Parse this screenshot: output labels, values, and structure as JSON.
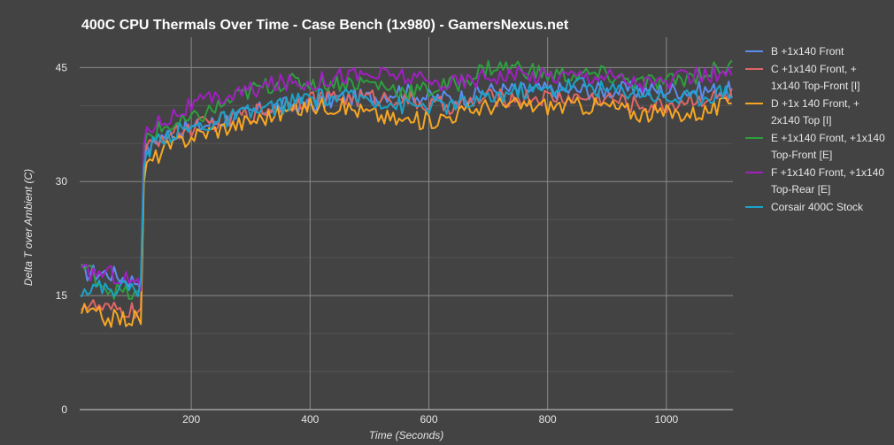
{
  "chart_data": {
    "type": "line",
    "title": "400C CPU Thermals Over Time - Case Bench (1x980) - GamersNexus.net",
    "xlabel": "Time (Seconds)",
    "ylabel": "Delta T over Ambient (C)",
    "xlim": [
      12,
      1112
    ],
    "ylim": [
      0,
      49
    ],
    "xticks": [
      200,
      400,
      600,
      800,
      1000
    ],
    "yticks": [
      0,
      15,
      30,
      45
    ],
    "grid": true,
    "legend_position": "right",
    "series": [
      {
        "name": "B +1x140 Front",
        "color": "#5b8def",
        "x": [
          15,
          60,
          100,
          115,
          118,
          125,
          150,
          200,
          250,
          300,
          350,
          400,
          450,
          500,
          550,
          600,
          650,
          700,
          750,
          800,
          850,
          900,
          950,
          1000,
          1050,
          1100,
          1112
        ],
        "y": [
          18,
          18,
          17,
          17,
          32,
          34,
          36,
          37,
          38,
          39,
          40,
          40,
          41,
          41,
          42,
          41,
          41,
          42,
          42,
          42,
          42,
          42,
          42,
          42,
          42,
          42,
          42
        ]
      },
      {
        "name": "C +1x140 Front, + 1x140 Top-Front [I]",
        "color": "#e06666",
        "x": [
          15,
          60,
          100,
          115,
          118,
          125,
          150,
          200,
          250,
          300,
          350,
          400,
          450,
          500,
          550,
          600,
          650,
          700,
          750,
          800,
          850,
          900,
          950,
          1000,
          1050,
          1100,
          1112
        ],
        "y": [
          14,
          13,
          13,
          13,
          30,
          34,
          36,
          37,
          38,
          39,
          40,
          41,
          41,
          41,
          41,
          40,
          40,
          41,
          41,
          41,
          41,
          41,
          40,
          40,
          41,
          41,
          42
        ]
      },
      {
        "name": "D +1x 140 Front, + 2x140 Top [I]",
        "color": "#f6a623",
        "x": [
          15,
          60,
          100,
          115,
          118,
          125,
          150,
          200,
          250,
          300,
          350,
          400,
          450,
          500,
          550,
          600,
          650,
          700,
          750,
          800,
          850,
          900,
          950,
          1000,
          1050,
          1100,
          1112
        ],
        "y": [
          13,
          12,
          12,
          12,
          29,
          32,
          34,
          36,
          37,
          38,
          39,
          40,
          40,
          39,
          38,
          38,
          39,
          40,
          40,
          40,
          40,
          40,
          39,
          39,
          39,
          40,
          41
        ]
      },
      {
        "name": "E +1x140 Front, +1x140 Top-Front [E]",
        "color": "#2e9e3e",
        "x": [
          15,
          60,
          100,
          115,
          118,
          125,
          150,
          200,
          250,
          300,
          350,
          400,
          450,
          500,
          550,
          600,
          650,
          700,
          750,
          800,
          850,
          900,
          950,
          1000,
          1050,
          1100,
          1112
        ],
        "y": [
          19,
          16,
          15,
          15,
          33,
          36,
          37,
          38,
          40,
          42,
          43,
          43,
          43,
          43,
          42,
          42,
          43,
          45,
          45,
          44,
          44,
          44,
          43,
          43,
          44,
          45,
          45
        ]
      },
      {
        "name": "F +1x140 Front, +1x140 Top-Rear [E]",
        "color": "#a020c0",
        "x": [
          15,
          60,
          100,
          115,
          118,
          125,
          150,
          200,
          250,
          300,
          350,
          400,
          450,
          500,
          550,
          600,
          650,
          700,
          750,
          800,
          850,
          900,
          950,
          1000,
          1050,
          1100,
          1112
        ],
        "y": [
          18,
          18,
          17,
          16,
          34,
          37,
          38,
          40,
          41,
          42,
          43,
          43,
          44,
          44,
          44,
          43,
          43,
          44,
          44,
          44,
          44,
          44,
          43,
          43,
          44,
          44,
          44
        ]
      },
      {
        "name": "Corsair 400C Stock",
        "color": "#1aa3c9",
        "x": [
          15,
          60,
          100,
          115,
          118,
          125,
          150,
          200,
          250,
          300,
          350,
          400,
          450,
          500,
          550,
          600,
          650,
          700,
          750,
          800,
          850,
          900,
          950,
          1000,
          1050,
          1100,
          1112
        ],
        "y": [
          16,
          16,
          16,
          16,
          31,
          34,
          36,
          37,
          38,
          39,
          40,
          41,
          41,
          41,
          40,
          40,
          40,
          41,
          42,
          42,
          43,
          42,
          42,
          41,
          41,
          42,
          42
        ]
      }
    ]
  }
}
